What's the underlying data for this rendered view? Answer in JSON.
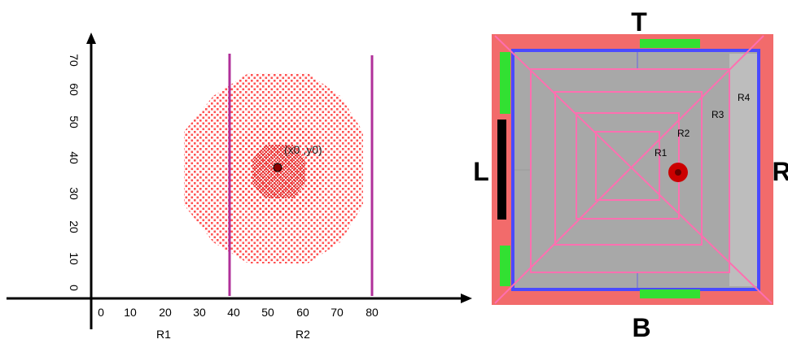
{
  "left_plot": {
    "x_ticks": [
      "0",
      "10",
      "20",
      "30",
      "40",
      "50",
      "60",
      "70",
      "80"
    ],
    "y_ticks": [
      "0",
      "10",
      "20",
      "30",
      "40",
      "50",
      "60",
      "70"
    ],
    "region_labels": [
      "R1",
      "R2"
    ],
    "point_label": "(x0 ,y0)",
    "colors": {
      "axis": "#000000",
      "boundary": "#b0309a",
      "dots": "#ff4040",
      "point": "#8b0000"
    }
  },
  "right_plot": {
    "side_labels": {
      "top": "T",
      "bottom": "B",
      "left": "L",
      "right": "R"
    },
    "ring_labels": [
      "R1",
      "R2",
      "R3",
      "R4"
    ],
    "colors": {
      "border": "#f26b6b",
      "inner_frame": "#4a4aff",
      "floor": "#a8a8a8",
      "rings": "#ff6fb0",
      "door": "#32e032",
      "wall": "#000000",
      "ball": "#cc0000"
    }
  }
}
